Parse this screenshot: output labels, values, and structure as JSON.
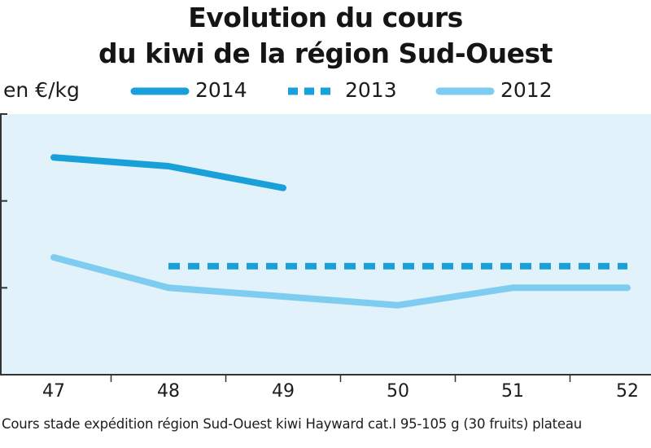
{
  "chart_data": {
    "type": "line",
    "title": "Evolution du cours",
    "subtitle": "du kiwi de la région Sud-Ouest",
    "ylabel": "en €/kg",
    "xlabel": "",
    "categories": [
      "47",
      "48",
      "49",
      "50",
      "51",
      "52"
    ],
    "series": [
      {
        "name": "2014",
        "style": "solid-thick",
        "color": "#1aa0d8",
        "points": [
          {
            "x": 47,
            "y": 2.5
          },
          {
            "x": 48,
            "y": 2.4
          },
          {
            "x": 49,
            "y": 2.15
          }
        ]
      },
      {
        "name": "2013",
        "style": "dashed",
        "color": "#1aa0d8",
        "points": [
          {
            "x": 48,
            "y": 1.25
          },
          {
            "x": 49,
            "y": 1.25
          },
          {
            "x": 50,
            "y": 1.25
          },
          {
            "x": 51,
            "y": 1.25
          },
          {
            "x": 52,
            "y": 1.25
          }
        ]
      },
      {
        "name": "2012",
        "style": "solid-light",
        "color": "#7ecdf0",
        "points": [
          {
            "x": 47,
            "y": 1.35
          },
          {
            "x": 48,
            "y": 1.0
          },
          {
            "x": 49,
            "y": 0.9
          },
          {
            "x": 50,
            "y": 0.8
          },
          {
            "x": 51,
            "y": 1.0
          },
          {
            "x": 52,
            "y": 1.0
          }
        ]
      }
    ],
    "xlim": [
      47,
      52
    ],
    "ylim": [
      0,
      3
    ],
    "yticks": [
      0,
      1,
      2,
      3
    ],
    "ytick_labels_visible": false,
    "grid": false,
    "legend_position": "top",
    "plot_background": "#e2f2fb",
    "footnote": "Cours stade expédition région Sud-Ouest kiwi Hayward cat.I 95-105 g (30 fruits) plateau"
  }
}
